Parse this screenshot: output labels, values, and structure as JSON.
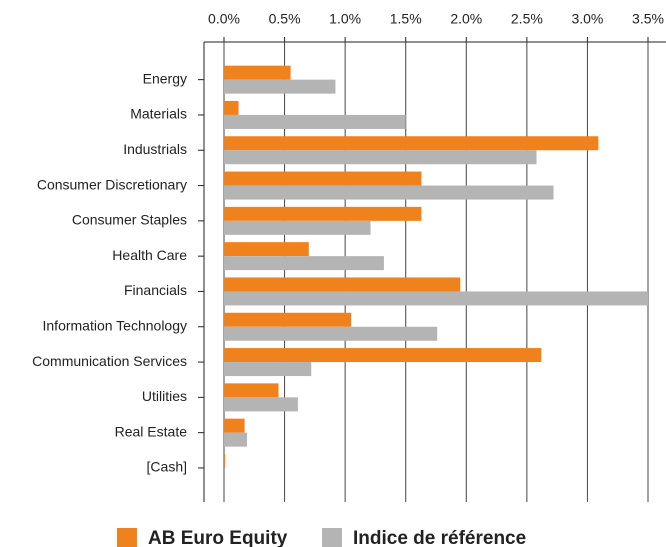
{
  "chart_data": {
    "type": "bar",
    "orientation": "horizontal",
    "categories": [
      "Energy",
      "Materials",
      "Industrials",
      "Consumer Discretionary",
      "Consumer Staples",
      "Health Care",
      "Financials",
      "Information Technology",
      "Communication Services",
      "Utilities",
      "Real Estate",
      "[Cash]"
    ],
    "series": [
      {
        "name": "AB Euro Equity",
        "color": "#f0821e",
        "values": [
          0.55,
          0.12,
          3.09,
          1.63,
          1.63,
          0.7,
          1.95,
          1.05,
          2.62,
          0.45,
          0.17,
          0.01
        ]
      },
      {
        "name": "Indice de référence",
        "color": "#b4b4b4",
        "values": [
          0.92,
          1.5,
          2.58,
          2.72,
          1.21,
          1.32,
          3.5,
          1.76,
          0.72,
          0.61,
          0.19,
          0
        ]
      }
    ],
    "xlim": [
      0,
      3.5
    ],
    "xticks": [
      {
        "value": 0,
        "label": "0.0%"
      },
      {
        "value": 0.5,
        "label": "0.5%"
      },
      {
        "value": 1,
        "label": "1.0%"
      },
      {
        "value": 1.5,
        "label": "1.5%"
      },
      {
        "value": 2,
        "label": "2.0%"
      },
      {
        "value": 2.5,
        "label": "2.5%"
      },
      {
        "value": 3,
        "label": "3.0%"
      },
      {
        "value": 3.5,
        "label": "3.5%"
      }
    ],
    "grid": true,
    "legend": "bottom"
  }
}
